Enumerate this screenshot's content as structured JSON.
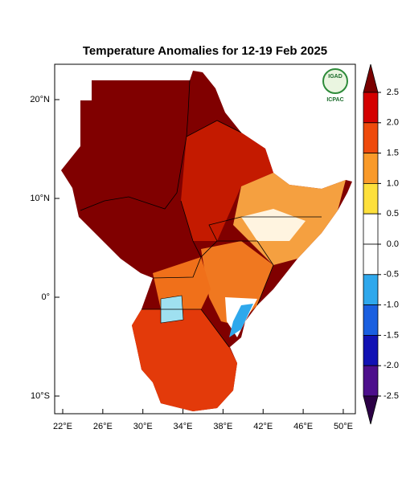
{
  "title": "Temperature Anomalies for 12-19 Feb 2025",
  "logo": {
    "top": "IGAD",
    "bottom": "ICPAC"
  },
  "lon_labels": [
    "22°E",
    "26°E",
    "30°E",
    "34°E",
    "38°E",
    "42°E",
    "46°E",
    "50°E"
  ],
  "lat_labels": [
    "20°N",
    "10°N",
    "0°",
    "10°S"
  ],
  "colorbar": {
    "ticks": [
      {
        "value": 2.5,
        "label": "2.5"
      },
      {
        "value": 2,
        "label": "2.0"
      },
      {
        "value": 1.5,
        "label": "1.5"
      },
      {
        "value": 1,
        "label": "1.0"
      },
      {
        "value": 0.5,
        "label": "0.5"
      },
      {
        "value": 0,
        "label": "0.0"
      },
      {
        "value": -0.5,
        "label": "-0.5"
      },
      {
        "value": -1,
        "label": "-1.0"
      },
      {
        "value": -1.5,
        "label": "-1.5"
      },
      {
        "value": -2,
        "label": "-2.0"
      },
      {
        "value": -2.5,
        "label": "-2.5"
      }
    ],
    "colors": [
      "#7a0000",
      "#d40000",
      "#ee4a0c",
      "#f99a2a",
      "#fde03c",
      "#ffffff",
      "#ffffff",
      "#2fa8ec",
      "#1a5fe0",
      "#1212b4",
      "#4d0f8c",
      "#2c0046"
    ]
  }
}
